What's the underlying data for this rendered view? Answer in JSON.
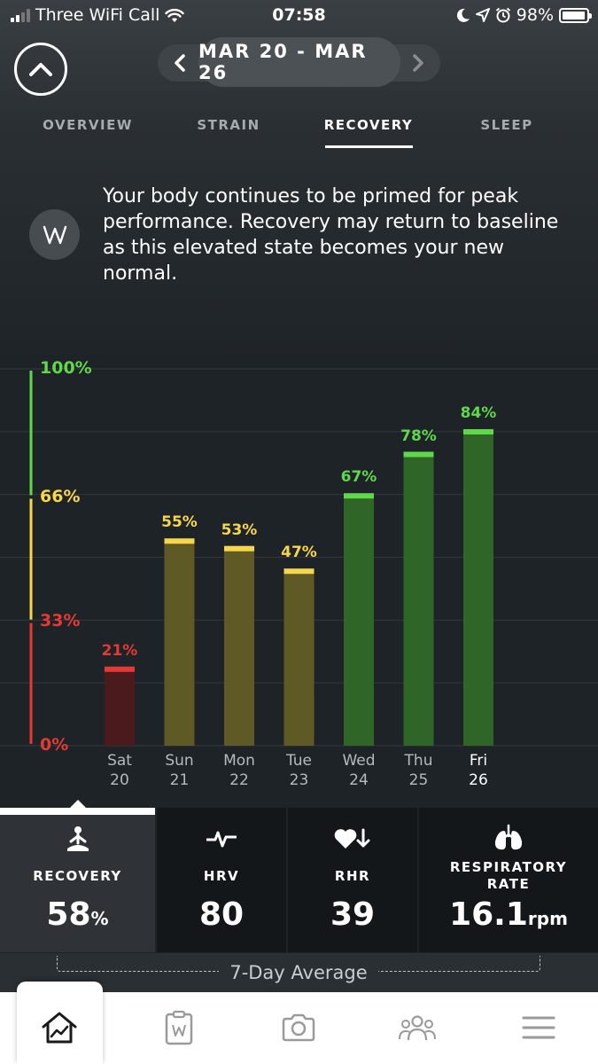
{
  "status_bar": {
    "carrier": "Three WiFi Call",
    "time": "07:58",
    "battery": "98%"
  },
  "header": {
    "date_range": "MAR 20 - MAR 26"
  },
  "tabs": [
    {
      "label": "OVERVIEW",
      "active": false
    },
    {
      "label": "STRAIN",
      "active": false
    },
    {
      "label": "RECOVERY",
      "active": true
    },
    {
      "label": "SLEEP",
      "active": false
    }
  ],
  "insight": {
    "text": "Your body continues to be primed for peak performance. Recovery may return to baseline as this elevated state becomes your new normal."
  },
  "chart_data": {
    "type": "bar",
    "y_ticks": [
      "100%",
      "66%",
      "33%",
      "0%"
    ],
    "ylim": [
      0,
      100
    ],
    "zones": [
      {
        "from": 0,
        "to": 33,
        "color": "#e53935"
      },
      {
        "from": 33,
        "to": 66,
        "color": "#f6d64a"
      },
      {
        "from": 66,
        "to": 100,
        "color": "#5fd84a"
      }
    ],
    "categories": [
      {
        "day": "Sat",
        "date": "20"
      },
      {
        "day": "Sun",
        "date": "21"
      },
      {
        "day": "Mon",
        "date": "22"
      },
      {
        "day": "Tue",
        "date": "23"
      },
      {
        "day": "Wed",
        "date": "24"
      },
      {
        "day": "Thu",
        "date": "25"
      },
      {
        "day": "Fri",
        "date": "26"
      }
    ],
    "values": [
      21,
      55,
      53,
      47,
      67,
      78,
      84
    ],
    "labels": [
      "21%",
      "55%",
      "53%",
      "47%",
      "67%",
      "78%",
      "84%"
    ],
    "highlighted_index": 6
  },
  "stats": {
    "recovery": {
      "label": "RECOVERY",
      "value": "58",
      "unit": "%"
    },
    "hrv": {
      "label": "HRV",
      "value": "80"
    },
    "rhr": {
      "label": "RHR",
      "value": "39"
    },
    "respiratory": {
      "label_line1": "RESPIRATORY",
      "label_line2": "RATE",
      "value": "16.1",
      "unit": "rpm"
    }
  },
  "average": {
    "label": "7-Day Average"
  },
  "icons": {
    "collapse": "chevron-up-icon",
    "prev": "chevron-left-icon",
    "next": "chevron-right-icon",
    "insight": "whoop-logo-icon",
    "recovery": "meditation-icon",
    "hrv": "pulse-icon",
    "rhr": "heart-down-icon",
    "respiratory": "lungs-icon",
    "nav": [
      "home-chart-icon",
      "journal-icon",
      "camera-icon",
      "team-icon",
      "menu-icon"
    ]
  }
}
